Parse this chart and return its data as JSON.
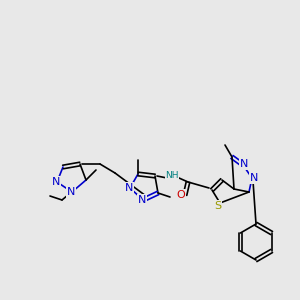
{
  "background_color": "#e8e8e8",
  "figsize": [
    3.0,
    3.0
  ],
  "dpi": 100,
  "colors": {
    "C": "#000000",
    "N": "#0000cc",
    "O": "#cc0000",
    "S": "#999900",
    "H": "#008080"
  }
}
